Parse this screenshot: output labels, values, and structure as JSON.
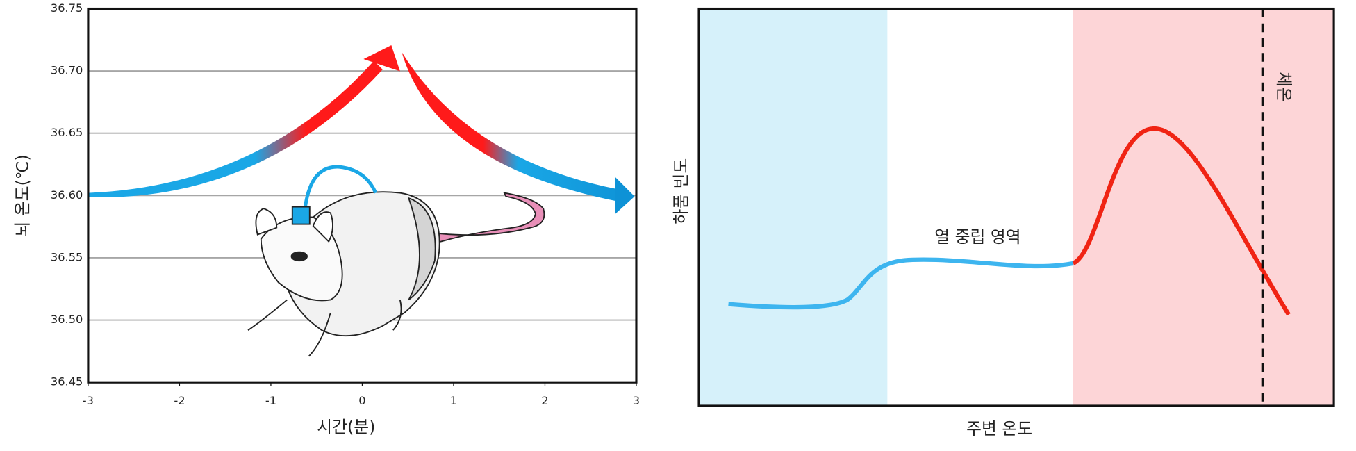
{
  "chart_data": [
    {
      "type": "line",
      "x_label": "시간(분)",
      "y_label": "뇌 온도(℃)",
      "xlim": [
        -3,
        3
      ],
      "xticks": [
        -3,
        -2,
        -1,
        0,
        1,
        2,
        3
      ],
      "ylim": [
        36.45,
        36.75
      ],
      "yticks": [
        36.45,
        {
          "value": 36.5,
          "label": "36.50"
        },
        36.55,
        {
          "value": 36.6,
          "label": "36.60"
        },
        36.65,
        {
          "value": 36.7,
          "label": "36.70"
        },
        36.75
      ],
      "grid": true
    },
    {
      "type": "line",
      "x_label": "주변 온도",
      "y_label": "하품 빈도",
      "annotations": [
        "열 중립 영역",
        "체온"
      ]
    }
  ]
}
